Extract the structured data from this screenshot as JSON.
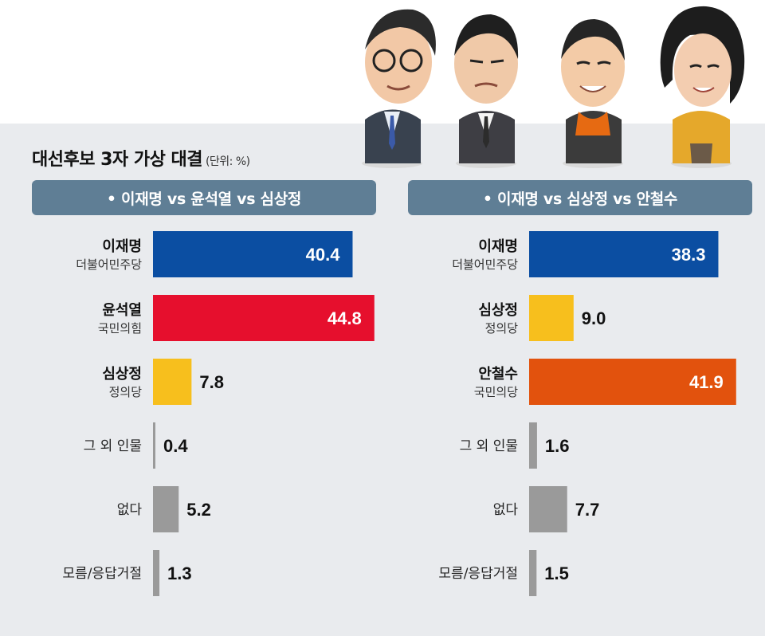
{
  "title": "대선후보 3자 가상 대결",
  "unit": "(단위: %)",
  "colors": {
    "lee": "#0b4ea2",
    "yoon": "#e60f2d",
    "sim": "#f7bf1d",
    "ahn": "#e2520d",
    "other": "#9a9a9a"
  },
  "chart_data": [
    {
      "type": "bar",
      "title": "• 이재명 vs 윤석열 vs 심상정",
      "categories": [
        {
          "name": "이재명",
          "party": "더불어민주당",
          "value": 40.4,
          "color": "#0b4ea2",
          "label_inside": true
        },
        {
          "name": "윤석열",
          "party": "국민의힘",
          "value": 44.8,
          "color": "#e60f2d",
          "label_inside": true
        },
        {
          "name": "심상정",
          "party": "정의당",
          "value": 7.8,
          "color": "#f7bf1d",
          "label_inside": false
        },
        {
          "name": "그 외 인물",
          "party": "",
          "value": 0.4,
          "color": "#9a9a9a",
          "label_inside": false
        },
        {
          "name": "없다",
          "party": "",
          "value": 5.2,
          "color": "#9a9a9a",
          "label_inside": false
        },
        {
          "name": "모름/응답거절",
          "party": "",
          "value": 1.3,
          "color": "#9a9a9a",
          "label_inside": false
        }
      ]
    },
    {
      "type": "bar",
      "title": "• 이재명 vs 심상정 vs 안철수",
      "categories": [
        {
          "name": "이재명",
          "party": "더불어민주당",
          "value": 38.3,
          "color": "#0b4ea2",
          "label_inside": true
        },
        {
          "name": "심상정",
          "party": "정의당",
          "value": 9.0,
          "color": "#f7bf1d",
          "label_inside": false
        },
        {
          "name": "안철수",
          "party": "국민의당",
          "value": 41.9,
          "color": "#e2520d",
          "label_inside": true
        },
        {
          "name": "그 외 인물",
          "party": "",
          "value": 1.6,
          "color": "#9a9a9a",
          "label_inside": false
        },
        {
          "name": "없다",
          "party": "",
          "value": 7.7,
          "color": "#9a9a9a",
          "label_inside": false
        },
        {
          "name": "모름/응답거절",
          "party": "",
          "value": 1.5,
          "color": "#9a9a9a",
          "label_inside": false
        }
      ]
    }
  ]
}
